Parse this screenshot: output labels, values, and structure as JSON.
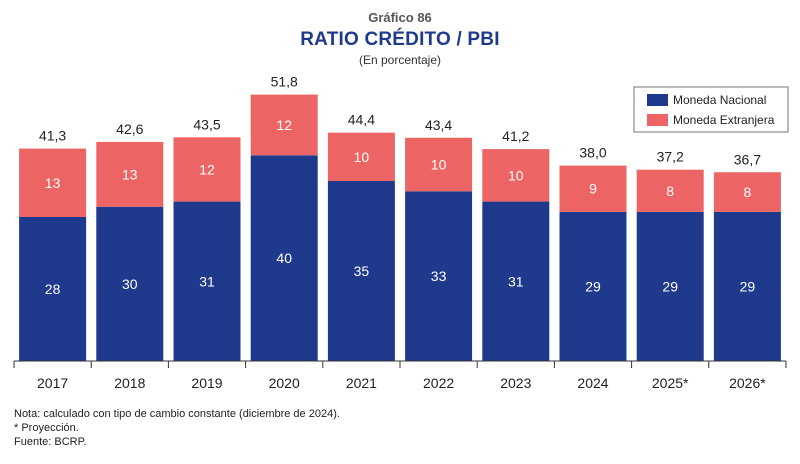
{
  "header": {
    "kicker": "Gráfico 86",
    "title": "RATIO CRÉDITO / PBI",
    "subtitle": "(En porcentaje)"
  },
  "chart_data": {
    "type": "bar",
    "stacked": true,
    "categories": [
      "2017",
      "2018",
      "2019",
      "2020",
      "2021",
      "2022",
      "2023",
      "2024",
      "2025*",
      "2026*"
    ],
    "series": [
      {
        "name": "Moneda Nacional",
        "color": "#1f3a8c",
        "values": [
          28,
          30,
          31,
          40,
          35,
          33,
          31,
          29,
          29,
          29
        ]
      },
      {
        "name": "Moneda Extranjera",
        "color": "#ec6463",
        "values": [
          13,
          13,
          12,
          12,
          10,
          10,
          10,
          9,
          8,
          8
        ]
      }
    ],
    "totals": [
      "41,3",
      "42,6",
      "43,5",
      "51,8",
      "44,4",
      "43,4",
      "41,2",
      "38,0",
      "37,2",
      "36,7"
    ],
    "total_values": [
      41.3,
      42.6,
      43.5,
      51.8,
      44.4,
      43.4,
      41.2,
      38.0,
      37.2,
      36.7
    ],
    "ylim": [
      0,
      56
    ],
    "grid": false,
    "legend_position": "top-right",
    "xlabel": "",
    "ylabel": ""
  },
  "notes": [
    "Nota: calculado con tipo de cambio constante (diciembre de 2024).",
    "* Proyección.",
    "Fuente: BCRP."
  ]
}
